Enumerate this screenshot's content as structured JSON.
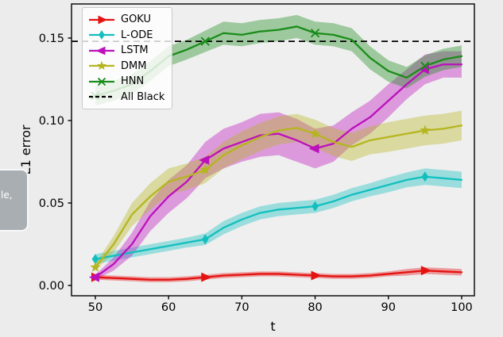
{
  "overlay": {
    "text": "le,"
  },
  "chart_data": {
    "type": "line",
    "title": "",
    "xlabel": "t",
    "ylabel": "L1 error",
    "xlim": [
      46.75,
      101.74
    ],
    "ylim": [
      -0.00625,
      0.17067
    ],
    "xticks": [
      50,
      60,
      70,
      80,
      90,
      100
    ],
    "yticks": [
      0,
      0.05,
      0.1,
      0.15
    ],
    "ytick_labels": [
      "0.00",
      "0.05",
      "0.10",
      "0.15"
    ],
    "grid": false,
    "legend_position": "upper left",
    "background": "#ececec",
    "plot_background": "#efefef",
    "band_alpha": 0.38,
    "marker_every": 6,
    "x": [
      50,
      52.5,
      55,
      57.5,
      60,
      62.5,
      65,
      67.5,
      70,
      72.5,
      75,
      77.5,
      80,
      82.5,
      85,
      87.5,
      90,
      92.5,
      95,
      97.5,
      100
    ],
    "series": [
      {
        "name": "GOKU",
        "color": "#e51212",
        "marker": "triangle-right",
        "values": [
          0.005,
          0.0045,
          0.004,
          0.0035,
          0.0035,
          0.004,
          0.005,
          0.006,
          0.0065,
          0.007,
          0.007,
          0.0065,
          0.006,
          0.0055,
          0.0055,
          0.006,
          0.007,
          0.008,
          0.009,
          0.0085,
          0.008
        ],
        "band": [
          0.0015,
          0.0015,
          0.0015,
          0.0015,
          0.0015,
          0.0015,
          0.0015,
          0.0015,
          0.0015,
          0.0015,
          0.0015,
          0.0015,
          0.0015,
          0.0015,
          0.0015,
          0.0015,
          0.0015,
          0.002,
          0.002,
          0.002,
          0.002
        ]
      },
      {
        "name": "L-ODE",
        "color": "#12bfbf",
        "marker": "diamond",
        "values": [
          0.016,
          0.018,
          0.02,
          0.022,
          0.024,
          0.026,
          0.028,
          0.035,
          0.04,
          0.044,
          0.046,
          0.047,
          0.048,
          0.051,
          0.055,
          0.058,
          0.061,
          0.064,
          0.066,
          0.065,
          0.064
        ],
        "band": [
          0.003,
          0.003,
          0.003,
          0.003,
          0.003,
          0.003,
          0.0035,
          0.004,
          0.004,
          0.004,
          0.004,
          0.004,
          0.004,
          0.004,
          0.004,
          0.004,
          0.0045,
          0.0045,
          0.005,
          0.005,
          0.005
        ]
      },
      {
        "name": "LSTM",
        "color": "#bc10bc",
        "marker": "triangle-left",
        "values": [
          0.005,
          0.013,
          0.025,
          0.042,
          0.054,
          0.063,
          0.076,
          0.083,
          0.087,
          0.091,
          0.092,
          0.088,
          0.083,
          0.086,
          0.095,
          0.102,
          0.112,
          0.122,
          0.131,
          0.134,
          0.134
        ],
        "band": [
          0.0015,
          0.004,
          0.007,
          0.009,
          0.01,
          0.01,
          0.011,
          0.012,
          0.012,
          0.013,
          0.013,
          0.013,
          0.012,
          0.011,
          0.01,
          0.01,
          0.01,
          0.009,
          0.009,
          0.008,
          0.008
        ]
      },
      {
        "name": "DMM",
        "color": "#b5b520",
        "marker": "star",
        "values": [
          0.011,
          0.025,
          0.043,
          0.054,
          0.063,
          0.066,
          0.07,
          0.079,
          0.085,
          0.09,
          0.094,
          0.0955,
          0.092,
          0.087,
          0.084,
          0.088,
          0.09,
          0.092,
          0.094,
          0.095,
          0.097
        ],
        "band": [
          0.002,
          0.005,
          0.007,
          0.008,
          0.008,
          0.008,
          0.008,
          0.008,
          0.0085,
          0.0085,
          0.0085,
          0.0085,
          0.0085,
          0.0085,
          0.0085,
          0.0085,
          0.009,
          0.009,
          0.009,
          0.009,
          0.009
        ]
      },
      {
        "name": "HNN",
        "color": "#1a8c1a",
        "marker": "x",
        "values": [
          0.115,
          0.118,
          0.122,
          0.13,
          0.139,
          0.143,
          0.148,
          0.153,
          0.152,
          0.154,
          0.155,
          0.157,
          0.153,
          0.152,
          0.149,
          0.138,
          0.13,
          0.126,
          0.133,
          0.137,
          0.139
        ],
        "band": [
          0.006,
          0.006,
          0.006,
          0.006,
          0.006,
          0.006,
          0.0065,
          0.007,
          0.007,
          0.007,
          0.007,
          0.007,
          0.007,
          0.007,
          0.007,
          0.007,
          0.0065,
          0.0065,
          0.0065,
          0.0065,
          0.0065
        ]
      }
    ],
    "reference_line": {
      "name": "All Black",
      "color": "#000000",
      "style": "dashed",
      "value": 0.148
    }
  }
}
